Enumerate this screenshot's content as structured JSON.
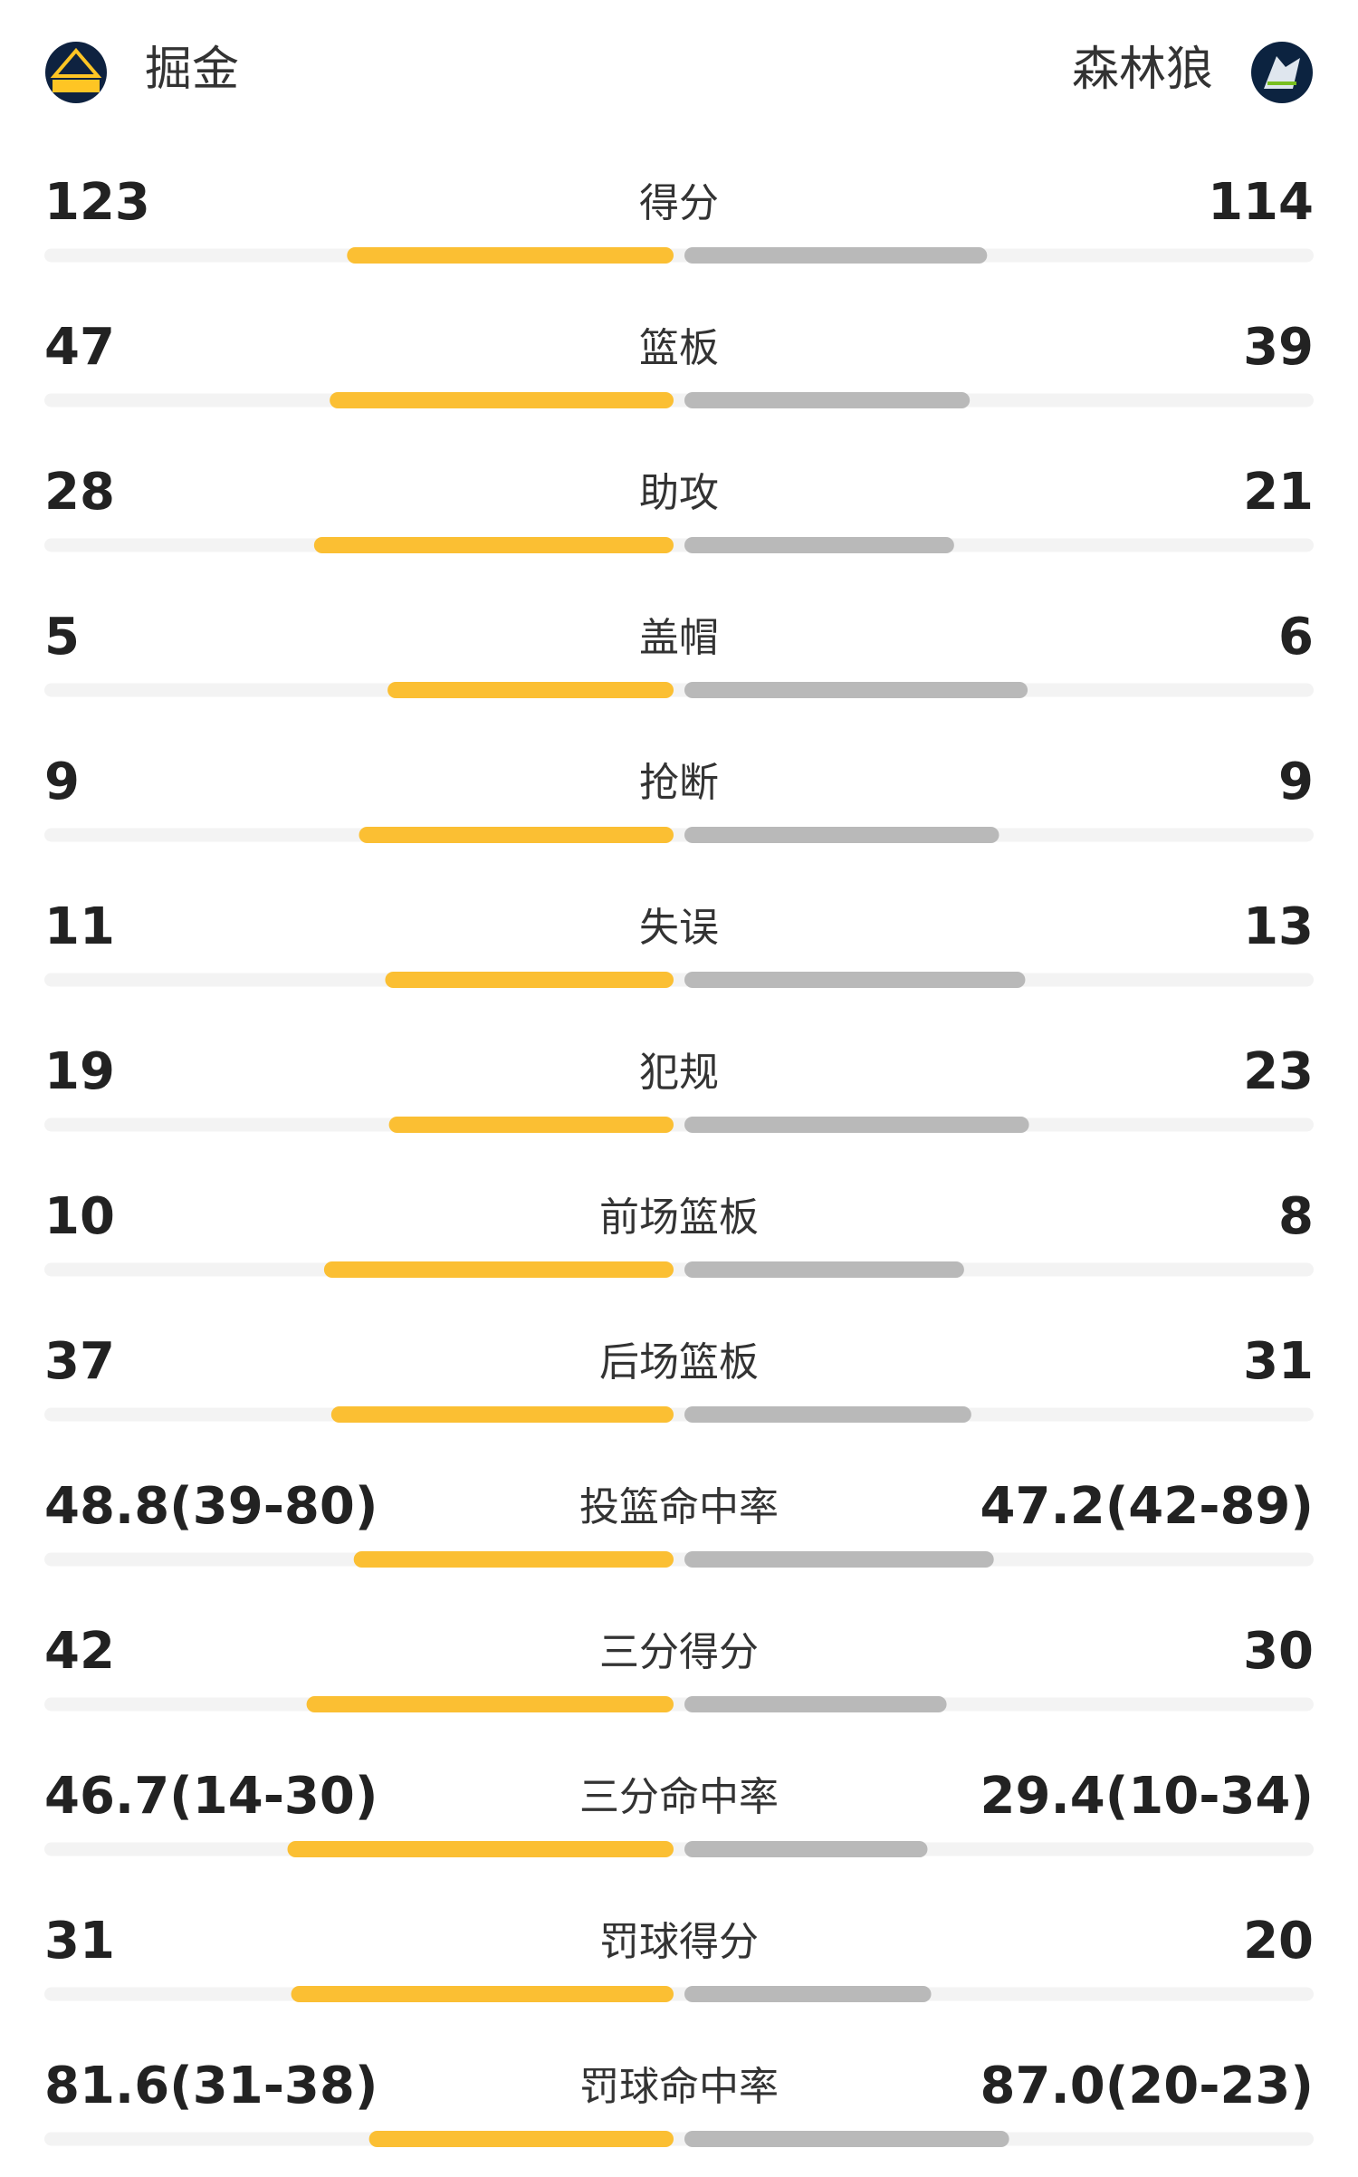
{
  "header": {
    "home_team": "掘金",
    "away_team": "森林狼"
  },
  "rows": [
    {
      "label": "得分",
      "home": 123,
      "away": 114
    },
    {
      "label": "篮板",
      "home": 47,
      "away": 39
    },
    {
      "label": "助攻",
      "home": 28,
      "away": 21
    },
    {
      "label": "盖帽",
      "home": 5,
      "away": 6
    },
    {
      "label": "抢断",
      "home": 9,
      "away": 9
    },
    {
      "label": "失误",
      "home": 11,
      "away": 13
    },
    {
      "label": "犯规",
      "home": 19,
      "away": 23
    },
    {
      "label": "前场篮板",
      "home": 10,
      "away": 8
    },
    {
      "label": "后场篮板",
      "home": 37,
      "away": 31
    },
    {
      "label": "投篮命中率",
      "home": "48.8(39-80)",
      "away": "47.2(42-89)"
    },
    {
      "label": "三分得分",
      "home": 42,
      "away": 30
    },
    {
      "label": "三分命中率",
      "home": "46.7(14-30)",
      "away": "29.4(10-34)"
    },
    {
      "label": "罚球得分",
      "home": 31,
      "away": 20
    },
    {
      "label": "罚球命中率",
      "home": "81.6(31-38)",
      "away": "87.0(20-23)"
    }
  ]
}
